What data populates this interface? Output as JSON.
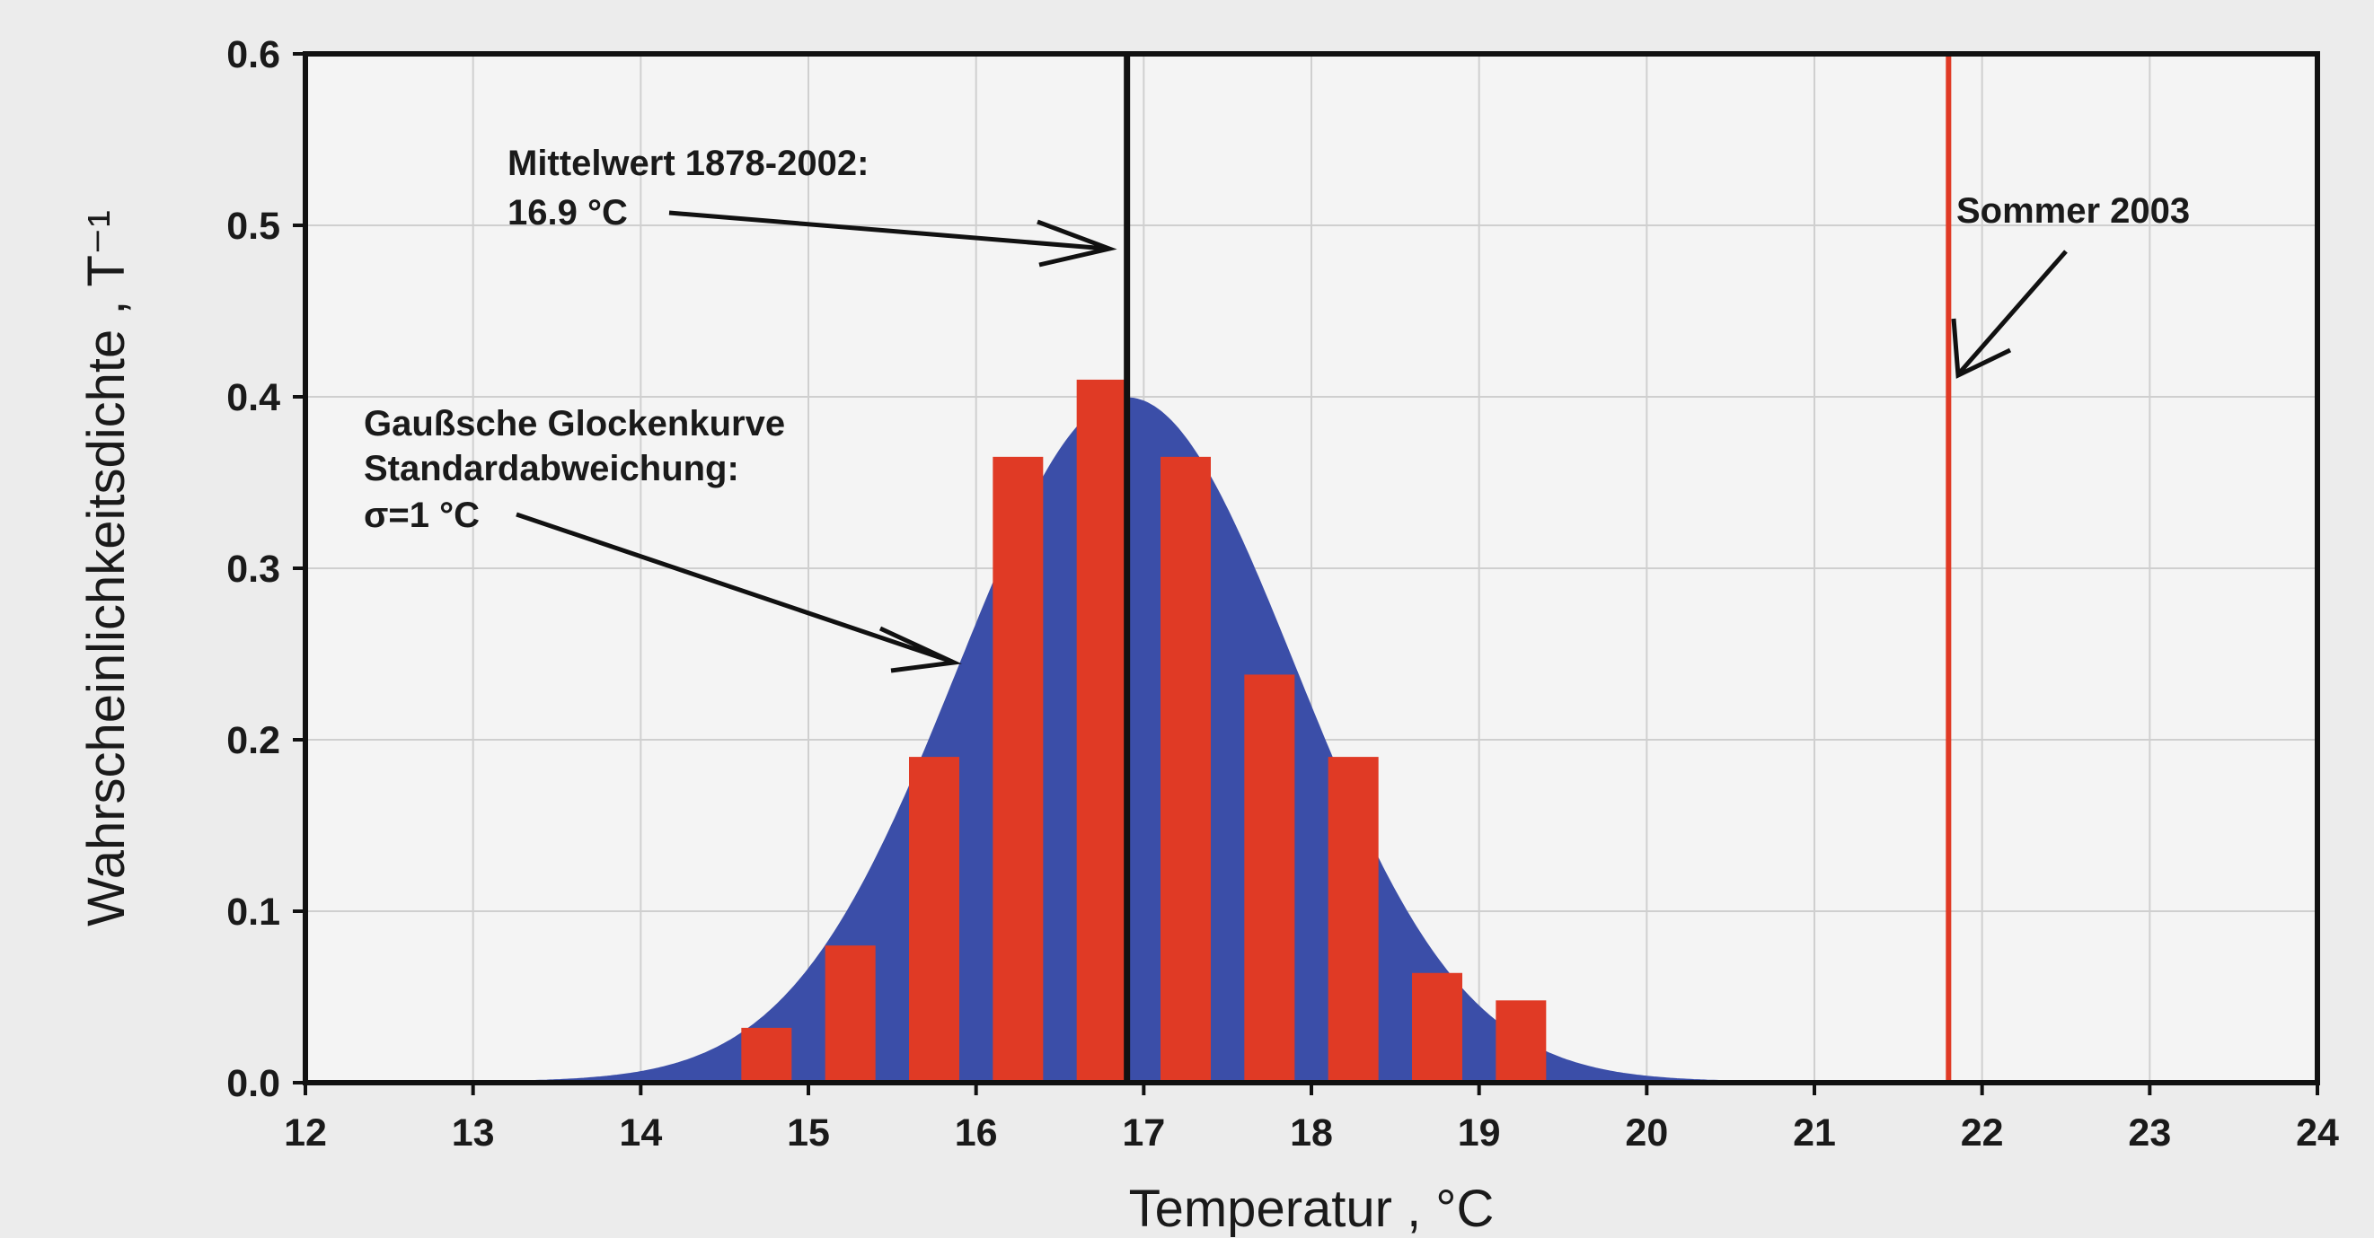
{
  "chart_data": {
    "type": "bar",
    "xlabel": "Temperatur , °C",
    "ylabel": "Wahrscheinlichkeitsdichte , T⁻¹",
    "xlim": [
      12,
      24
    ],
    "ylim": [
      0,
      0.6
    ],
    "x_ticks": [
      "12",
      "13",
      "14",
      "15",
      "16",
      "17",
      "18",
      "19",
      "20",
      "21",
      "22",
      "23",
      "24"
    ],
    "y_ticks": [
      "0.0",
      "0.1",
      "0.2",
      "0.3",
      "0.4",
      "0.5",
      "0.6"
    ],
    "grid": true,
    "bars": {
      "color": "#e03a25",
      "width": 0.3,
      "x": [
        14.75,
        15.25,
        15.75,
        16.25,
        16.75,
        17.25,
        17.75,
        18.25,
        18.75,
        19.25
      ],
      "values": [
        0.032,
        0.08,
        0.19,
        0.365,
        0.41,
        0.365,
        0.238,
        0.19,
        0.064,
        0.048
      ]
    },
    "gaussian_curve": {
      "mean": 16.9,
      "sigma": 1.0,
      "color": "#3b4ea8"
    },
    "mean_line": {
      "x": 16.9,
      "color": "#111111"
    },
    "summer_line": {
      "x": 21.8,
      "color": "#e03a25"
    },
    "annotations": {
      "mean_line1": "Mittelwert 1878-2002:",
      "mean_line2": "16.9 °C",
      "gauss_line1": "Gaußsche Glockenkurve",
      "gauss_line2": "Standardabweichung:",
      "gauss_line3": "σ=1 °C",
      "summer": "Sommer 2003"
    }
  }
}
